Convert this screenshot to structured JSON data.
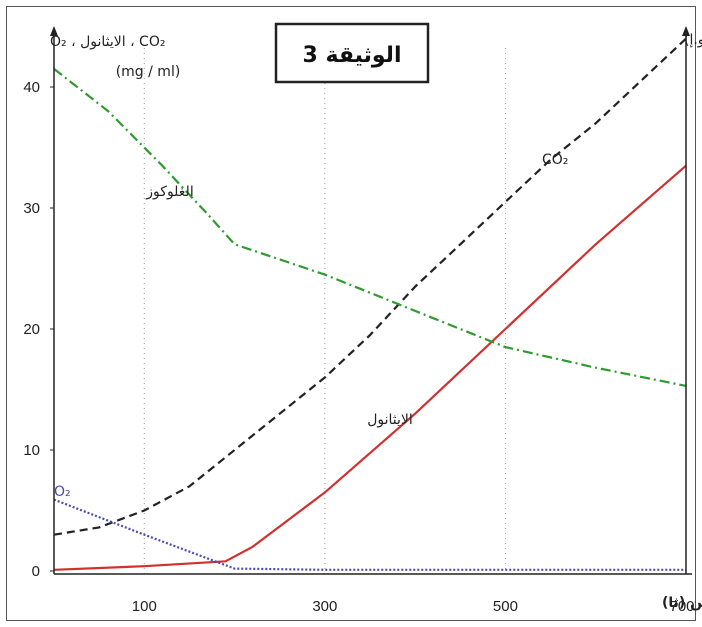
{
  "title": "الوثيقة 3",
  "chart_data": {
    "type": "line",
    "title": "الوثيقة 3",
    "xlabel": "الزمن (ثا)",
    "ylabel_left": "O₂ ، الايثانول ، CO₂",
    "ylabel_left_unit": "(mg / ml)",
    "ylabel_right": "الغلوكوز(و.إ)",
    "xlim": [
      0,
      700
    ],
    "ylim": [
      0,
      44
    ],
    "x_ticks": [
      100,
      300,
      500,
      700
    ],
    "y_ticks": [
      0,
      10,
      20,
      30,
      40
    ],
    "grid": "vertical dotted at x ticks",
    "series": [
      {
        "name": "CO₂",
        "color": "#222222",
        "dash": "dashed",
        "x": [
          0,
          50,
          100,
          150,
          200,
          250,
          300,
          350,
          400,
          450,
          500,
          550,
          600,
          650,
          700
        ],
        "y": [
          3.0,
          3.6,
          5.0,
          7.0,
          10.0,
          13.0,
          16.0,
          19.5,
          23.5,
          27.0,
          30.5,
          34.0,
          37.0,
          40.5,
          44.0
        ]
      },
      {
        "name": "الايثانول",
        "color": "#d03030",
        "dash": "solid",
        "x": [
          0,
          100,
          190,
          220,
          300,
          400,
          500,
          600,
          700
        ],
        "y": [
          0.1,
          0.4,
          0.8,
          2.0,
          6.5,
          13.0,
          20.0,
          27.0,
          33.5
        ]
      },
      {
        "name": "الغلوكوز",
        "color": "#2f9a2f",
        "dash": "dashdot",
        "x": [
          0,
          60,
          120,
          170,
          200,
          300,
          400,
          500,
          600,
          700
        ],
        "y": [
          41.5,
          38.0,
          33.5,
          29.5,
          27.0,
          24.5,
          21.5,
          18.5,
          16.8,
          15.3
        ]
      },
      {
        "name": "O₂",
        "color": "#4a4ab0",
        "dash": "dotted",
        "x": [
          0,
          100,
          200,
          300,
          400,
          500,
          600,
          700
        ],
        "y": [
          5.9,
          3.0,
          0.2,
          0.1,
          0.1,
          0.1,
          0.1,
          0.1
        ]
      }
    ]
  }
}
